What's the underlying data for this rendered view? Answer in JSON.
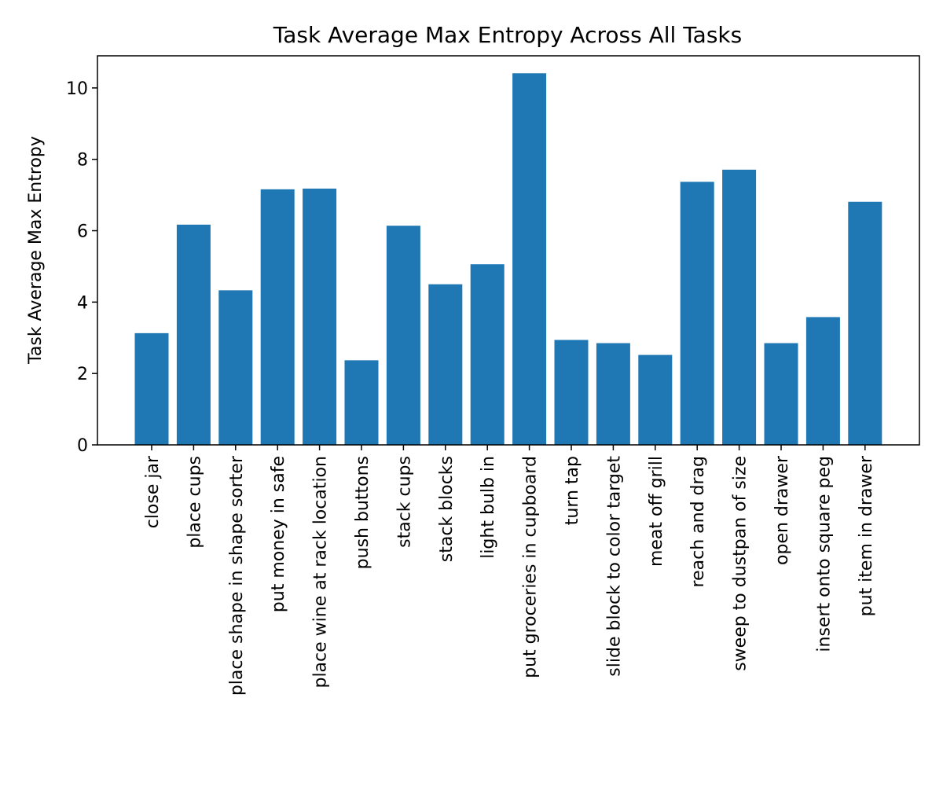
{
  "chart_data": {
    "type": "bar",
    "title": "Task Average Max Entropy Across All Tasks",
    "xlabel": "",
    "ylabel": "Task Average Max Entropy",
    "ylim": [
      0,
      10.9
    ],
    "yticks": [
      0,
      2,
      4,
      6,
      8,
      10
    ],
    "grid": false,
    "bar_color": "#1f77b4",
    "categories": [
      "close jar",
      "place cups",
      "place shape in shape sorter",
      "put money in safe",
      "place wine at rack location",
      "push buttons",
      "stack cups",
      "stack blocks",
      "light bulb in",
      "put groceries in cupboard",
      "turn tap",
      "slide block to color target",
      "meat off grill",
      "reach and drag",
      "sweep to dustpan of size",
      "open drawer",
      "insert onto square peg",
      "put item in drawer"
    ],
    "values": [
      3.13,
      6.17,
      4.33,
      7.16,
      7.18,
      2.37,
      6.14,
      4.5,
      5.06,
      10.41,
      2.94,
      2.85,
      2.52,
      7.37,
      7.71,
      2.85,
      3.58,
      6.81
    ]
  }
}
